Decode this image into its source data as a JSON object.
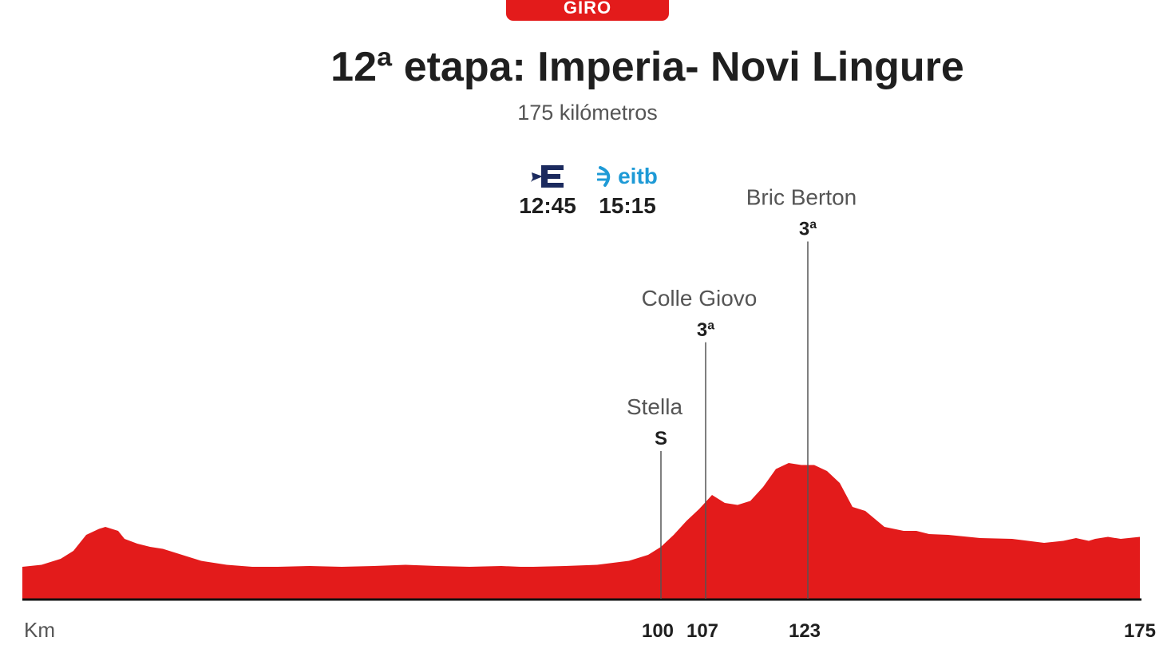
{
  "badge": "GIRO",
  "title": "12ª etapa: Imperia- Novi Lingure",
  "subtitle": "175 kilómetros",
  "broadcasters": [
    {
      "name": "teledeporte",
      "icon": "teledeporte-logo-icon",
      "time": "12:45"
    },
    {
      "name": "eitb",
      "icon": "eitb-logo-icon",
      "logo_text": "eitb",
      "time": "15:15"
    }
  ],
  "colors": {
    "profile": "#e31b1b",
    "badge": "#e31b1b",
    "eitb": "#1e9ad6",
    "teledeporte": "#1b2a5e"
  },
  "chart_data": {
    "type": "area",
    "title": "12ª etapa: Imperia- Novi Lingure",
    "xlabel": "Km",
    "ylabel": "",
    "x_range": [
      0,
      175
    ],
    "x_ticks": [
      100,
      107,
      123,
      175
    ],
    "x": [
      0,
      3,
      6,
      8,
      10,
      12,
      13,
      15,
      16,
      18,
      20,
      22,
      25,
      28,
      32,
      36,
      40,
      45,
      50,
      55,
      60,
      65,
      70,
      75,
      78,
      80,
      85,
      90,
      95,
      98,
      100,
      102,
      104,
      106,
      108,
      110,
      112,
      114,
      116,
      118,
      120,
      122,
      124,
      126,
      128,
      130,
      132,
      135,
      138,
      140,
      142,
      145,
      150,
      155,
      160,
      163,
      165,
      167,
      168,
      170,
      172,
      175
    ],
    "elevation": [
      80,
      85,
      100,
      120,
      160,
      175,
      180,
      170,
      150,
      138,
      130,
      125,
      110,
      95,
      85,
      80,
      80,
      82,
      80,
      82,
      85,
      82,
      80,
      82,
      80,
      80,
      82,
      85,
      95,
      110,
      130,
      160,
      195,
      225,
      260,
      240,
      235,
      245,
      280,
      325,
      340,
      335,
      335,
      320,
      290,
      230,
      220,
      180,
      170,
      170,
      162,
      160,
      152,
      150,
      140,
      145,
      152,
      145,
      150,
      155,
      150,
      155
    ],
    "climbs": [
      {
        "name": "Stella",
        "category": "S",
        "km": 100
      },
      {
        "name": "Colle Giovo",
        "category": "3ª",
        "km": 107
      },
      {
        "name": "Bric Berton",
        "category": "3ª",
        "km": 123
      }
    ]
  }
}
